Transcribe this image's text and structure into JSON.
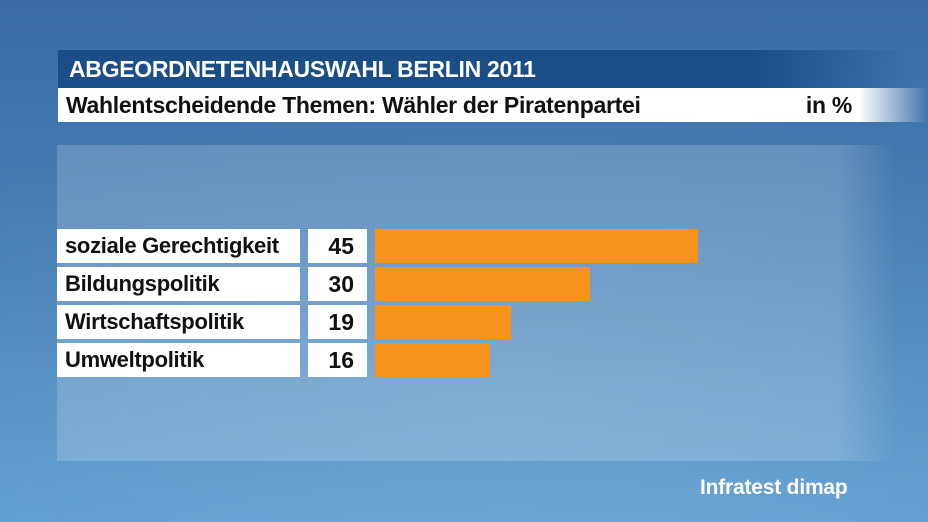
{
  "header": {
    "title": "ABGEORDNETENHAUSWAHL BERLIN 2011",
    "subtitle": "Wahlentscheidende Themen: Wähler der Piratenpartei",
    "unit_label": "in %"
  },
  "chart_data": {
    "type": "bar",
    "orientation": "horizontal",
    "title": "Wahlentscheidende Themen: Wähler der Piratenpartei",
    "unit": "%",
    "categories": [
      "soziale Gerechtigkeit",
      "Bildungspolitik",
      "Wirtschaftspolitik",
      "Umweltpolitik"
    ],
    "values": [
      45,
      30,
      19,
      16
    ],
    "xlim": [
      0,
      72
    ],
    "grid": false,
    "legend": false,
    "bar_color": "#f7921d"
  },
  "source": {
    "label": "Infratest dimap"
  },
  "colors": {
    "background_top": "#3a6ba5",
    "background_bottom": "#5e9ed1",
    "title_bar": "#1b4d86",
    "subtitle_bar": "#ffffff",
    "bar": "#f7921d",
    "text_dark": "#111111",
    "text_light": "#ffffff"
  }
}
